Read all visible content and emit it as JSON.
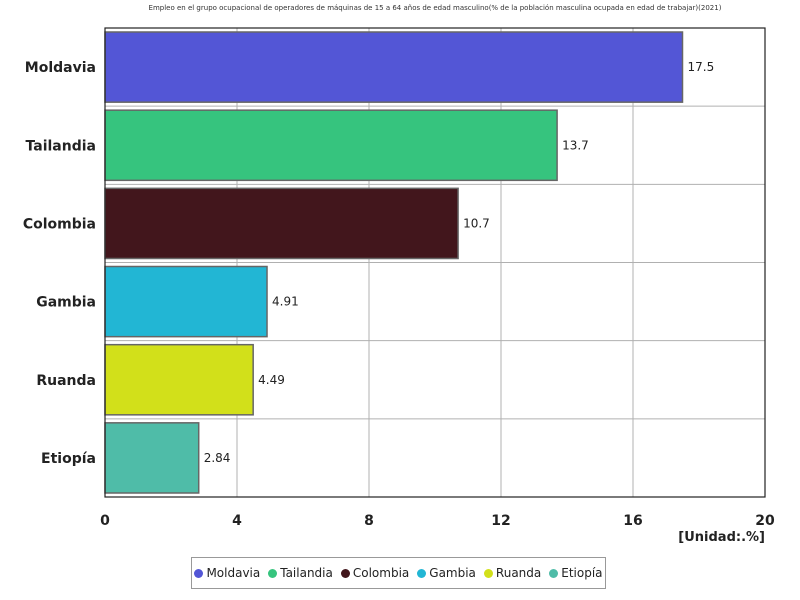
{
  "chart_data": {
    "type": "bar",
    "orientation": "horizontal",
    "title": "Empleo en el grupo ocupacional de operadores de máquinas de 15 a 64 años de edad masculino(% de la población masculina ocupada en edad de trabajar)(2021)",
    "categories": [
      "Moldavia",
      "Tailandia",
      "Colombia",
      "Gambia",
      "Ruanda",
      "Etiopía"
    ],
    "values": [
      17.5,
      13.7,
      10.7,
      4.91,
      4.49,
      2.84
    ],
    "value_labels": [
      "17.5",
      "13.7",
      "10.7",
      "4.91",
      "4.49",
      "2.84"
    ],
    "colors": [
      "#5356d6",
      "#36c47e",
      "#42161c",
      "#22b6d4",
      "#d2e01a",
      "#4fbca8"
    ],
    "xlim": [
      0,
      20
    ],
    "xticks": [
      "0",
      "4",
      "8",
      "12",
      "16",
      "20"
    ],
    "unit_label": "[Unidad:.%]",
    "grid": true,
    "legend_position": "bottom",
    "legend": [
      "Moldavia",
      "Tailandia",
      "Colombia",
      "Gambia",
      "Ruanda",
      "Etiopía"
    ]
  }
}
